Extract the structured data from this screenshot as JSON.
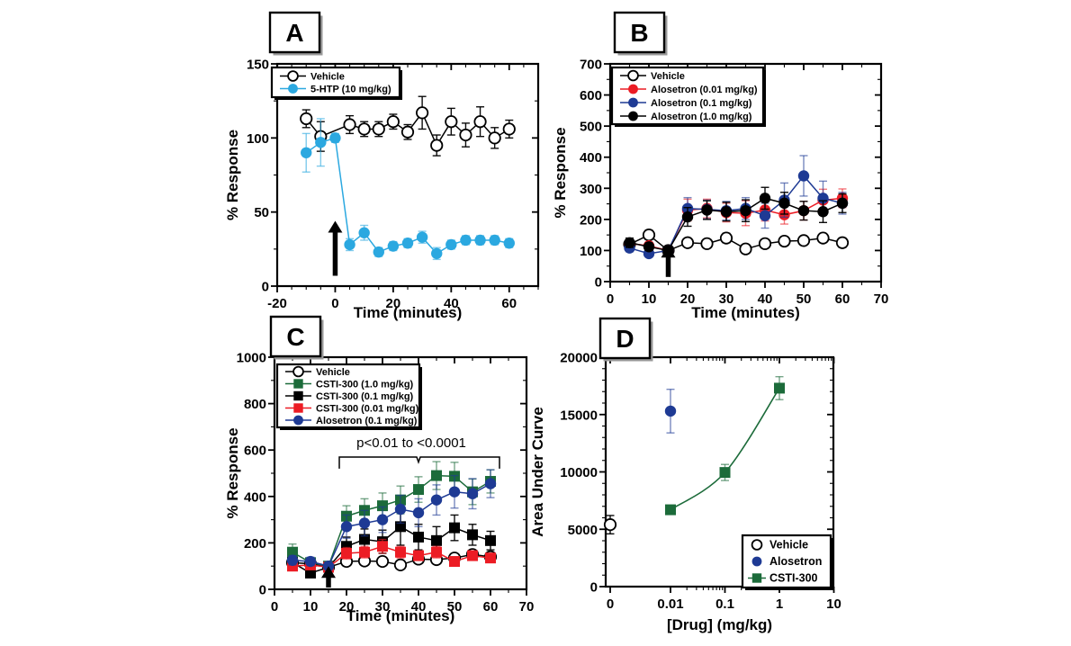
{
  "figure": {
    "background": "#ffffff"
  },
  "chart_data": [
    {
      "panel": "A",
      "type": "line",
      "xlabel": "Time (minutes)",
      "ylabel": "% Response",
      "xlim": [
        -20,
        70
      ],
      "ylim": [
        0,
        150
      ],
      "xticks": [
        -20,
        0,
        20,
        40,
        60
      ],
      "yticks": [
        0,
        50,
        100,
        150
      ],
      "x_minor_step": 5,
      "y_minor_step": 25,
      "grid": false,
      "legend_position": "top-left",
      "arrow": {
        "x": 0,
        "y_from": 7,
        "y_to": 44
      },
      "series": [
        {
          "name": "Vehicle",
          "marker": "circle-open",
          "color": "#000000",
          "line": true,
          "x": [
            -10,
            -5,
            5,
            10,
            15,
            20,
            25,
            30,
            35,
            40,
            45,
            50,
            55,
            60
          ],
          "y": [
            113,
            101,
            109,
            106,
            106,
            111,
            104,
            117,
            95,
            111,
            102,
            111,
            100,
            106
          ],
          "err": [
            6,
            10,
            6,
            5,
            5,
            5,
            5,
            11,
            7,
            9,
            8,
            10,
            7,
            6
          ]
        },
        {
          "name": "5-HTP (10 mg/kg)",
          "marker": "circle",
          "color": "#2BA8E0",
          "line": true,
          "x": [
            -10,
            -5,
            0,
            5,
            10,
            15,
            20,
            25,
            30,
            35,
            40,
            45,
            50,
            55,
            60
          ],
          "y": [
            90,
            97,
            100,
            28,
            36,
            23,
            27,
            29,
            33,
            22,
            28,
            31,
            31,
            31,
            29
          ],
          "err": [
            13,
            16,
            3,
            4,
            5,
            3,
            3,
            3,
            4,
            4,
            3,
            3,
            3,
            3,
            3
          ]
        }
      ]
    },
    {
      "panel": "B",
      "type": "line",
      "xlabel": "Time (minutes)",
      "ylabel": "% Response",
      "xlim": [
        0,
        70
      ],
      "ylim": [
        0,
        700
      ],
      "xticks": [
        0,
        10,
        20,
        30,
        40,
        50,
        60,
        70
      ],
      "yticks": [
        0,
        100,
        200,
        300,
        400,
        500,
        600,
        700
      ],
      "x_minor_step": 5,
      "y_minor_step": 50,
      "grid": false,
      "legend_position": "top-left",
      "arrow": {
        "x": 15,
        "y_from": 15,
        "y_to": 115
      },
      "series": [
        {
          "name": "Vehicle",
          "marker": "circle-open",
          "color": "#000000",
          "line": true,
          "x": [
            5,
            10,
            15,
            20,
            25,
            30,
            35,
            40,
            45,
            50,
            55,
            60
          ],
          "y": [
            120,
            150,
            100,
            125,
            122,
            140,
            105,
            122,
            130,
            132,
            140,
            125
          ],
          "err": [
            12,
            15,
            10,
            12,
            12,
            15,
            12,
            12,
            12,
            12,
            12,
            15
          ]
        },
        {
          "name": "Alosetron (0.01 mg/kg)",
          "marker": "circle",
          "color": "#EC1C24",
          "line": true,
          "x": [
            5,
            10,
            15,
            20,
            25,
            30,
            35,
            40,
            45,
            50,
            55,
            60
          ],
          "y": [
            123,
            115,
            100,
            230,
            235,
            222,
            220,
            230,
            215,
            228,
            262,
            268
          ],
          "err": [
            15,
            12,
            10,
            35,
            30,
            30,
            40,
            35,
            30,
            30,
            35,
            30
          ]
        },
        {
          "name": "Alosetron (0.1 mg/kg)",
          "marker": "circle",
          "color": "#1E3A94",
          "line": true,
          "x": [
            5,
            10,
            15,
            20,
            25,
            30,
            35,
            40,
            45,
            50,
            55,
            60
          ],
          "y": [
            108,
            90,
            100,
            235,
            232,
            228,
            235,
            212,
            262,
            340,
            268,
            252
          ],
          "err": [
            12,
            10,
            10,
            35,
            30,
            30,
            35,
            40,
            55,
            65,
            55,
            35
          ]
        },
        {
          "name": "Alosetron (1.0 mg/kg)",
          "marker": "circle",
          "color": "#000000",
          "line": true,
          "x": [
            5,
            10,
            15,
            20,
            25,
            30,
            35,
            40,
            45,
            50,
            55,
            60
          ],
          "y": [
            125,
            112,
            100,
            208,
            230,
            225,
            228,
            268,
            252,
            228,
            225,
            252
          ],
          "err": [
            15,
            12,
            10,
            30,
            30,
            30,
            35,
            35,
            35,
            30,
            35,
            30
          ]
        }
      ]
    },
    {
      "panel": "C",
      "type": "line",
      "xlabel": "Time (minutes)",
      "ylabel": "% Response",
      "xlim": [
        0,
        70
      ],
      "ylim": [
        0,
        1000
      ],
      "xticks": [
        0,
        10,
        20,
        30,
        40,
        50,
        60,
        70
      ],
      "yticks": [
        0,
        200,
        400,
        600,
        800,
        1000
      ],
      "x_minor_step": 5,
      "y_minor_step": 100,
      "grid": false,
      "legend_position": "top-left",
      "arrow": {
        "x": 15,
        "y_from": 8,
        "y_to": 100
      },
      "annotation": {
        "text": "p<0.01 to <0.0001",
        "x_from": 18,
        "x_to": 62.5,
        "notch_x": 40,
        "y_main": 570,
        "y_end": 520,
        "y_notch": 548,
        "text_x": 38,
        "text_y": 612
      },
      "series": [
        {
          "name": "Vehicle",
          "marker": "circle-open",
          "color": "#000000",
          "line": true,
          "x": [
            5,
            10,
            15,
            20,
            25,
            30,
            35,
            40,
            45,
            50,
            55,
            60
          ],
          "y": [
            115,
            110,
            95,
            120,
            122,
            120,
            105,
            130,
            128,
            135,
            150,
            140
          ],
          "err": [
            12,
            10,
            10,
            12,
            12,
            12,
            15,
            12,
            12,
            12,
            12,
            12
          ]
        },
        {
          "name": "CSTI-300 (1.0 mg/kg)",
          "marker": "square",
          "color": "#1C6B3A",
          "line": true,
          "x": [
            5,
            10,
            15,
            20,
            25,
            30,
            35,
            40,
            45,
            50,
            55,
            60
          ],
          "y": [
            160,
            115,
            100,
            315,
            340,
            360,
            385,
            430,
            490,
            487,
            420,
            465
          ],
          "err": [
            35,
            20,
            15,
            45,
            50,
            55,
            60,
            55,
            60,
            60,
            55,
            50
          ]
        },
        {
          "name": "CSTI-300 (0.1 mg/kg)",
          "marker": "square",
          "color": "#000000",
          "line": true,
          "x": [
            5,
            10,
            15,
            20,
            25,
            30,
            35,
            40,
            45,
            50,
            55,
            60
          ],
          "y": [
            115,
            70,
            95,
            185,
            215,
            205,
            270,
            225,
            210,
            265,
            235,
            210
          ],
          "err": [
            20,
            15,
            12,
            40,
            45,
            50,
            80,
            55,
            60,
            55,
            45,
            40
          ]
        },
        {
          "name": "CSTI-300 (0.01 mg/kg)",
          "marker": "square",
          "color": "#EC1C24",
          "line": true,
          "x": [
            5,
            10,
            15,
            20,
            25,
            30,
            35,
            40,
            45,
            50,
            55,
            60
          ],
          "y": [
            100,
            105,
            95,
            155,
            160,
            185,
            160,
            145,
            160,
            120,
            145,
            135
          ],
          "err": [
            15,
            12,
            10,
            25,
            25,
            30,
            25,
            20,
            25,
            18,
            20,
            18
          ]
        },
        {
          "name": "Alosetron (0.1 mg/kg)",
          "marker": "circle",
          "color": "#1E3A94",
          "line": true,
          "x": [
            5,
            10,
            15,
            20,
            25,
            30,
            35,
            40,
            45,
            50,
            55,
            60
          ],
          "y": [
            125,
            120,
            100,
            270,
            285,
            300,
            345,
            330,
            385,
            420,
            412,
            455
          ],
          "err": [
            20,
            18,
            12,
            50,
            55,
            55,
            60,
            60,
            65,
            70,
            65,
            60
          ]
        }
      ]
    },
    {
      "panel": "D",
      "type": "scatter",
      "xlabel": "[Drug] (mg/kg)",
      "ylabel": "Area Under Curve",
      "xscale": "log",
      "xticks": [
        "0",
        0.01,
        0.1,
        1,
        10
      ],
      "xtick_labels": [
        "0",
        "0.01",
        "0.1",
        "1",
        "10"
      ],
      "ylim": [
        0,
        20000
      ],
      "yticks": [
        0,
        5000,
        10000,
        15000,
        20000
      ],
      "y_minor_step": 1000,
      "grid": false,
      "legend_position": "bottom-right",
      "series": [
        {
          "name": "Vehicle",
          "marker": "circle-open",
          "color": "#000000",
          "line": false,
          "x": [
            "0"
          ],
          "y": [
            5400
          ],
          "err": [
            800
          ]
        },
        {
          "name": "Alosetron",
          "marker": "circle",
          "color": "#1E3A94",
          "line": false,
          "x": [
            0.01
          ],
          "y": [
            15300
          ],
          "err": [
            1900
          ]
        },
        {
          "name": "CSTI-300",
          "marker": "square",
          "color": "#1C6B3A",
          "line": "curve",
          "x": [
            0.01,
            0.1,
            1
          ],
          "y": [
            6700,
            9950,
            17300
          ],
          "err": [
            350,
            700,
            1000
          ]
        }
      ]
    }
  ]
}
